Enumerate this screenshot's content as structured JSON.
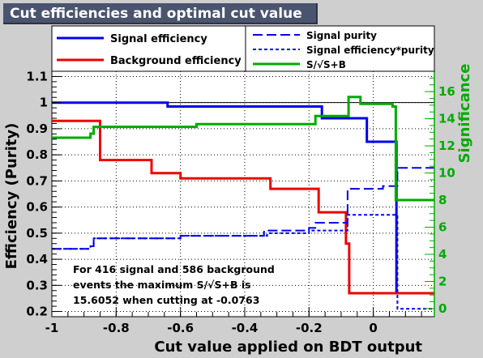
{
  "title": "Cut efficiencies and optimal cut value",
  "chart_data": {
    "type": "line",
    "title": "Cut efficiencies and optimal cut value",
    "xlabel": "Cut value applied on BDT output",
    "ylabel": "Efficiency (Purity)",
    "y2label": "Significance",
    "xlim": [
      -1,
      0.19
    ],
    "ylim": [
      0.18,
      1.12
    ],
    "y2lim": [
      -0.6,
      17.5
    ],
    "x_ticks": [
      "-1",
      "-0.8",
      "-0.6",
      "-0.4",
      "-0.2",
      "0"
    ],
    "y_ticks": [
      "0.2",
      "0.3",
      "0.4",
      "0.5",
      "0.6",
      "0.7",
      "0.8",
      "0.9",
      "1",
      "1.1"
    ],
    "y2_ticks": [
      "0",
      "2",
      "4",
      "6",
      "8",
      "10",
      "12",
      "14",
      "16"
    ],
    "grid": true,
    "reference_line": 1,
    "legend": {
      "left": [
        {
          "label": "Signal efficiency",
          "color": "#0000ee",
          "style": "solid"
        },
        {
          "label": "Background efficiency",
          "color": "#ee0000",
          "style": "solid"
        }
      ],
      "right": [
        {
          "label": "Signal purity",
          "color": "#0000ee",
          "style": "dashed"
        },
        {
          "label": "Signal efficiency*purity",
          "color": "#0000ee",
          "style": "dotted"
        },
        {
          "label": "S/√S+B",
          "color": "#00aa00",
          "style": "solid"
        }
      ]
    },
    "annotation": [
      "For 416 signal and 586 background",
      "events the maximum S/√S+B is",
      "15.6052 when cutting at -0.0763"
    ],
    "series": [
      {
        "name": "Signal efficiency",
        "axis": "left",
        "color": "#0000ee",
        "style": "solid",
        "x": [
          -1.0,
          -0.65,
          -0.64,
          -0.17,
          -0.16,
          -0.075,
          -0.02,
          -0.015,
          0.07,
          0.072,
          0.19
        ],
        "y": [
          1.0,
          1.0,
          0.985,
          0.985,
          0.94,
          0.94,
          0.85,
          0.85,
          0.85,
          0.27,
          0.27
        ]
      },
      {
        "name": "Background efficiency",
        "axis": "left",
        "color": "#ee0000",
        "style": "solid",
        "x": [
          -1.0,
          -0.86,
          -0.85,
          -0.77,
          -0.69,
          -0.6,
          -0.33,
          -0.32,
          -0.18,
          -0.17,
          -0.09,
          -0.085,
          -0.076,
          -0.075,
          0.07,
          0.072,
          0.19
        ],
        "y": [
          0.93,
          0.93,
          0.78,
          0.78,
          0.73,
          0.71,
          0.71,
          0.67,
          0.67,
          0.58,
          0.58,
          0.46,
          0.46,
          0.27,
          0.27,
          0.27,
          0.27
        ]
      },
      {
        "name": "Signal purity",
        "axis": "left",
        "color": "#0000ee",
        "style": "dashed",
        "x": [
          -1.0,
          -0.88,
          -0.87,
          -0.6,
          -0.34,
          -0.2,
          -0.18,
          -0.09,
          -0.08,
          0.03,
          0.07,
          0.075,
          0.19
        ],
        "y": [
          0.44,
          0.45,
          0.48,
          0.49,
          0.51,
          0.52,
          0.54,
          0.54,
          0.67,
          0.68,
          0.68,
          0.75,
          0.75
        ]
      },
      {
        "name": "Signal efficiency*purity",
        "axis": "left",
        "color": "#0000ee",
        "style": "dotted",
        "x": [
          -1.0,
          -0.88,
          -0.87,
          -0.6,
          -0.33,
          -0.2,
          -0.18,
          -0.09,
          -0.08,
          0.03,
          0.07,
          0.075,
          0.19
        ],
        "y": [
          0.44,
          0.45,
          0.48,
          0.49,
          0.5,
          0.51,
          0.51,
          0.51,
          0.57,
          0.57,
          0.57,
          0.21,
          0.21
        ]
      },
      {
        "name": "S/√S+B",
        "axis": "right",
        "color": "#00aa00",
        "style": "solid",
        "x": [
          -1.0,
          -0.88,
          -0.87,
          -0.55,
          -0.2,
          -0.18,
          -0.08,
          -0.077,
          -0.04,
          0.03,
          0.06,
          0.07,
          0.19
        ],
        "y": [
          12.6,
          12.9,
          13.4,
          13.6,
          13.6,
          14.2,
          14.2,
          15.6,
          15.1,
          15.1,
          14.9,
          8.0,
          8.0
        ]
      }
    ]
  }
}
